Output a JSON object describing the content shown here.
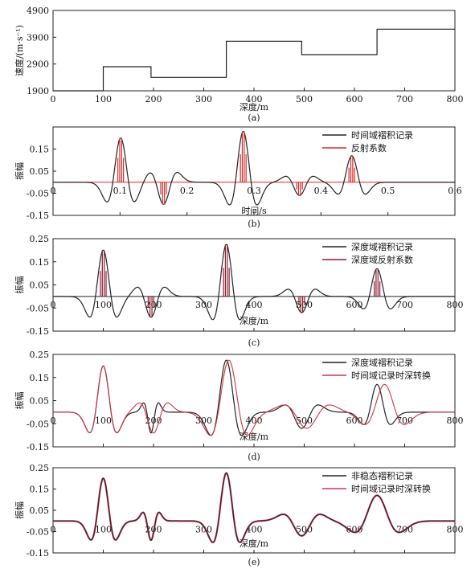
{
  "figure": {
    "panels": [
      {
        "id": "a",
        "caption": "(a)",
        "xlabel": "深度/m",
        "ylabel": "速度/(m·s⁻¹)",
        "xlim": [
          0,
          800
        ],
        "ylim": [
          1900,
          4900
        ],
        "xticks": [
          0,
          100,
          200,
          300,
          400,
          500,
          600,
          700,
          800
        ],
        "yticks": [
          1900,
          2900,
          3900,
          4900
        ],
        "legend": []
      },
      {
        "id": "b",
        "caption": "(b)",
        "xlabel": "时间/s",
        "ylabel": "振幅",
        "xlim": [
          0,
          0.6
        ],
        "ylim": [
          -0.15,
          0.25
        ],
        "xticks": [
          0,
          0.1,
          0.2,
          0.3,
          0.4,
          0.5,
          0.6
        ],
        "xtick_labels": [
          "0",
          "0.1",
          "0.2",
          "0.3",
          "0.4",
          "0.5",
          "0.6"
        ],
        "yticks": [
          -0.15,
          -0.05,
          0.05,
          0.15
        ],
        "legend": [
          {
            "label": "时间域褶积记录",
            "color": "#222222"
          },
          {
            "label": "反射系数",
            "color": "#d42a2a"
          }
        ]
      },
      {
        "id": "c",
        "caption": "(c)",
        "xlabel": "深度/m",
        "ylabel": "振幅",
        "xlim": [
          0,
          800
        ],
        "ylim": [
          -0.15,
          0.25
        ],
        "xticks": [
          0,
          100,
          200,
          300,
          400,
          500,
          600,
          700,
          800
        ],
        "yticks": [
          -0.15,
          -0.05,
          0.05,
          0.15,
          0.25
        ],
        "legend": [
          {
            "label": "深度域褶积记录",
            "color": "#222222"
          },
          {
            "label": "深度域反射系数",
            "color": "#8b1a2e"
          }
        ]
      },
      {
        "id": "d",
        "caption": "(d)",
        "xlabel": "深度/m",
        "ylabel": "振幅",
        "xlim": [
          0,
          800
        ],
        "ylim": [
          -0.15,
          0.25
        ],
        "xticks": [
          0,
          100,
          200,
          300,
          400,
          500,
          600,
          700,
          800
        ],
        "yticks": [
          -0.15,
          -0.05,
          0.05,
          0.15,
          0.25
        ],
        "legend": [
          {
            "label": "深度域褶积记录",
            "color": "#222222"
          },
          {
            "label": "时间域记录时深转换",
            "color": "#cc3344"
          }
        ]
      },
      {
        "id": "e",
        "caption": "(e)",
        "xlabel": "深度/m",
        "ylabel": "振幅",
        "xlim": [
          0,
          800
        ],
        "ylim": [
          -0.15,
          0.25
        ],
        "xticks": [
          0,
          100,
          200,
          300,
          400,
          500,
          600,
          700,
          800
        ],
        "yticks": [
          -0.15,
          -0.05,
          0.05,
          0.15,
          0.25
        ],
        "legend": [
          {
            "label": "非稳态褶积记录",
            "color": "#222222"
          },
          {
            "label": "时间域记录时深转换",
            "color": "#c43a5a"
          }
        ]
      }
    ]
  },
  "chart_data": [
    {
      "panel": "a",
      "type": "line",
      "series": [
        {
          "x": [
            0,
            100,
            100,
            195,
            195,
            345,
            345,
            495,
            495,
            645,
            645,
            800
          ],
          "y": [
            1900,
            1900,
            2800,
            2800,
            2400,
            2400,
            3750,
            3750,
            3250,
            3250,
            4200,
            4200
          ]
        }
      ]
    },
    {
      "panel": "b",
      "type": "line",
      "wavelet": {
        "kind": "ricker",
        "peak_to_trough_halfwidth": 0.0167
      },
      "spikes": [
        {
          "x": 0.101,
          "value": 0.2
        },
        {
          "x": 0.165,
          "value": -0.1
        },
        {
          "x": 0.284,
          "value": 0.23
        },
        {
          "x": 0.368,
          "value": -0.06
        },
        {
          "x": 0.446,
          "value": 0.12
        }
      ]
    },
    {
      "panel": "c",
      "type": "line",
      "wavelet": {
        "kind": "ricker",
        "trough_offset": 22
      },
      "spikes": [
        {
          "x": 100,
          "value": 0.2
        },
        {
          "x": 195,
          "value": -0.09
        },
        {
          "x": 345,
          "value": 0.225
        },
        {
          "x": 495,
          "value": -0.07
        },
        {
          "x": 645,
          "value": 0.12
        }
      ]
    },
    {
      "panel": "d",
      "type": "line",
      "series": [
        {
          "kind": "ricker",
          "trough_offsets": [
            22,
            12,
            25,
            27,
            22
          ],
          "spikes": [
            {
              "x": 100,
              "value": 0.2
            },
            {
              "x": 195,
              "value": -0.09
            },
            {
              "x": 345,
              "value": 0.225
            },
            {
              "x": 495,
              "value": -0.07
            },
            {
              "x": 645,
              "value": 0.12
            }
          ]
        },
        {
          "kind": "ricker",
          "trough_offsets": [
            22,
            23,
            30,
            37,
            32
          ],
          "spikes": [
            {
              "x": 100,
              "value": 0.2
            },
            {
              "x": 200,
              "value": -0.09
            },
            {
              "x": 350,
              "value": 0.225
            },
            {
              "x": 505,
              "value": -0.07
            },
            {
              "x": 660,
              "value": 0.12
            }
          ]
        }
      ]
    },
    {
      "panel": "e",
      "type": "line",
      "series": [
        {
          "kind": "ricker",
          "trough_offsets": [
            20,
            13,
            22,
            30,
            36
          ],
          "spikes": [
            {
              "x": 100,
              "value": 0.2
            },
            {
              "x": 195,
              "value": -0.09
            },
            {
              "x": 345,
              "value": 0.225
            },
            {
              "x": 495,
              "value": -0.07
            },
            {
              "x": 645,
              "value": 0.12
            }
          ]
        },
        {
          "kind": "ricker",
          "trough_offsets": [
            20,
            13,
            22,
            30,
            36
          ],
          "spikes": [
            {
              "x": 100,
              "value": 0.2
            },
            {
              "x": 195,
              "value": -0.09
            },
            {
              "x": 345,
              "value": 0.225
            },
            {
              "x": 495,
              "value": -0.07
            },
            {
              "x": 645,
              "value": 0.12
            }
          ]
        }
      ]
    }
  ]
}
